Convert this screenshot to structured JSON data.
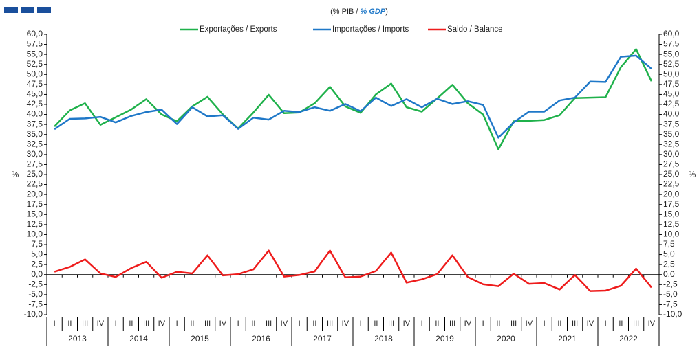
{
  "chart_data": {
    "type": "line",
    "subtitle_parts": [
      "(% PIB / ",
      "% GDP",
      ")"
    ],
    "ylabel": "%",
    "categories": [
      "I",
      "II",
      "III",
      "IV",
      "I",
      "II",
      "III",
      "IV",
      "I",
      "II",
      "III",
      "IV",
      "I",
      "II",
      "III",
      "IV",
      "I",
      "II",
      "III",
      "IV",
      "I",
      "II",
      "III",
      "IV",
      "I",
      "II",
      "III",
      "IV",
      "I",
      "II",
      "III",
      "IV",
      "I",
      "II",
      "III",
      "IV",
      "I",
      "II",
      "III",
      "IV"
    ],
    "years": [
      "2013",
      "2014",
      "2015",
      "2016",
      "2017",
      "2018",
      "2019",
      "2020",
      "2021",
      "2022"
    ],
    "series": [
      {
        "name": "Exportações / Exports",
        "color": "#1fb14b",
        "values": [
          37.0,
          41.0,
          42.8,
          37.4,
          39.3,
          41.2,
          43.8,
          40.0,
          38.3,
          42.0,
          44.4,
          40.0,
          36.5,
          40.5,
          44.9,
          40.3,
          40.5,
          42.8,
          46.9,
          42.0,
          40.4,
          45.0,
          47.7,
          41.8,
          40.7,
          44.0,
          47.4,
          42.8,
          40.0,
          31.3,
          38.3,
          38.4,
          38.6,
          39.8,
          44.1,
          44.2,
          44.3,
          51.8,
          56.3,
          48.3
        ]
      },
      {
        "name": "Importações / Imports",
        "color": "#1f78c8",
        "values": [
          36.3,
          38.9,
          39.0,
          39.4,
          38.0,
          39.6,
          40.6,
          41.2,
          37.6,
          41.8,
          39.5,
          39.8,
          36.4,
          39.2,
          38.7,
          40.9,
          40.6,
          41.8,
          40.9,
          42.6,
          40.8,
          44.2,
          42.1,
          43.8,
          41.8,
          43.9,
          42.6,
          43.3,
          42.4,
          34.2,
          38.0,
          40.7,
          40.7,
          43.5,
          44.2,
          48.2,
          48.1,
          54.4,
          54.7,
          51.4
        ]
      },
      {
        "name": "Saldo / Balance",
        "color": "#ee1c1c",
        "values": [
          0.7,
          1.9,
          3.8,
          0.3,
          -0.6,
          1.6,
          3.2,
          -0.8,
          0.7,
          0.3,
          4.8,
          -0.2,
          0.1,
          1.3,
          6.0,
          -0.5,
          -0.1,
          0.8,
          6.0,
          -0.7,
          -0.5,
          0.9,
          5.5,
          -2.0,
          -1.2,
          0.1,
          4.8,
          -0.6,
          -2.4,
          -2.9,
          0.2,
          -2.3,
          -2.1,
          -3.7,
          -0.1,
          -4.1,
          -4.0,
          -2.8,
          1.5,
          -3.2
        ]
      }
    ],
    "ylim": [
      -10,
      60
    ],
    "yticks": [
      {
        "value": 60,
        "label": "60,0"
      },
      {
        "value": 57.5,
        "label": "57,5"
      },
      {
        "value": 55,
        "label": "55,0"
      },
      {
        "value": 52.5,
        "label": "52,5"
      },
      {
        "value": 50,
        "label": "50,0"
      },
      {
        "value": 47.5,
        "label": "47,5"
      },
      {
        "value": 45,
        "label": "45,0"
      },
      {
        "value": 42.5,
        "label": "42,5"
      },
      {
        "value": 40,
        "label": "40,0"
      },
      {
        "value": 37.5,
        "label": "37,5"
      },
      {
        "value": 35,
        "label": "35,0"
      },
      {
        "value": 32.5,
        "label": "32,5"
      },
      {
        "value": 30,
        "label": "30,0"
      },
      {
        "value": 27.5,
        "label": "27,5"
      },
      {
        "value": 25,
        "label": "25,0"
      },
      {
        "value": 22.5,
        "label": "22,5"
      },
      {
        "value": 20,
        "label": "20,0"
      },
      {
        "value": 17.5,
        "label": "17,5"
      },
      {
        "value": 15,
        "label": "15,0"
      },
      {
        "value": 12.5,
        "label": "12,5"
      },
      {
        "value": 10,
        "label": "10,0"
      },
      {
        "value": 7.5,
        "label": "7,5"
      },
      {
        "value": 5,
        "label": "5,0"
      },
      {
        "value": 2.5,
        "label": "2,5"
      },
      {
        "value": 0,
        "label": "0,0"
      },
      {
        "value": -2.5,
        "label": "-2,5"
      },
      {
        "value": -5,
        "label": "-5,0"
      },
      {
        "value": -7.5,
        "label": "-7,5"
      },
      {
        "value": -10,
        "label": "-10,0"
      }
    ]
  }
}
